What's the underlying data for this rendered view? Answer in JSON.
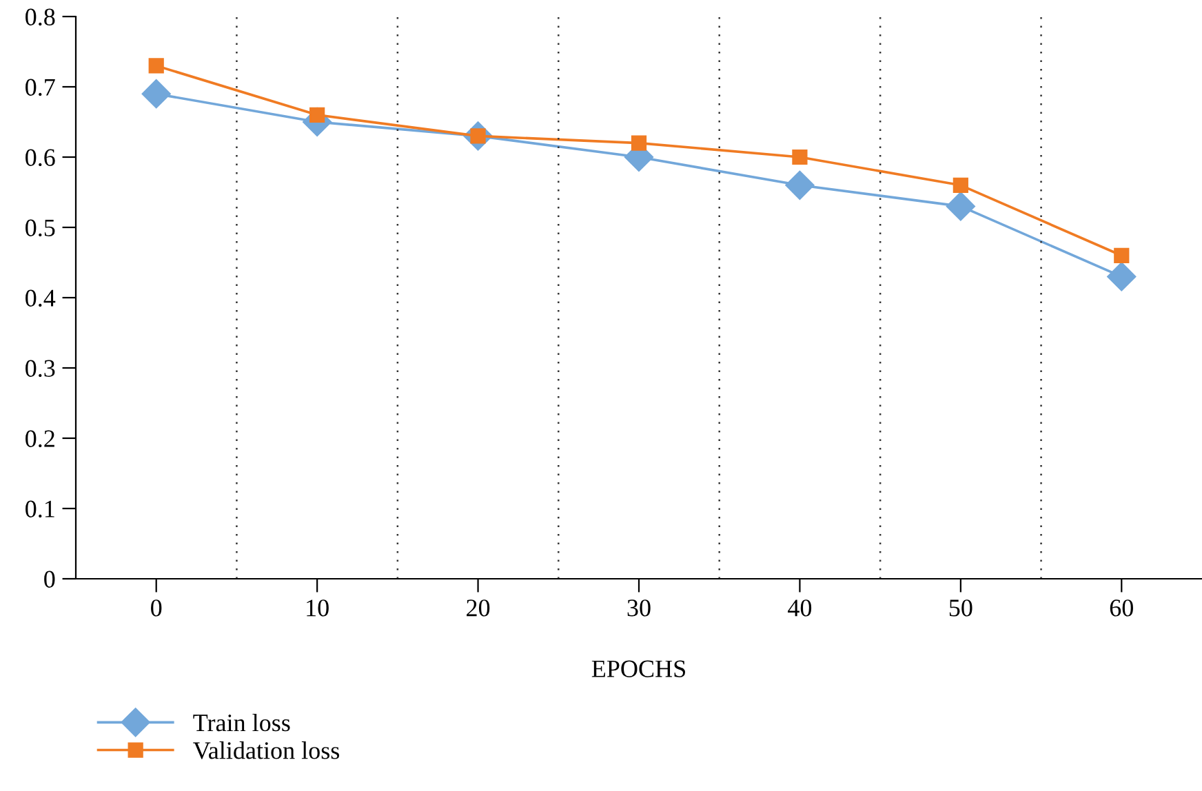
{
  "chart_data": {
    "type": "line",
    "xlabel": "EPOCHS",
    "categories": [
      "0",
      "10",
      "20",
      "30",
      "40",
      "50",
      "60"
    ],
    "series": [
      {
        "name": "Train loss",
        "color": "#72a7da",
        "marker": "diamond",
        "values": [
          0.69,
          0.65,
          0.63,
          0.6,
          0.56,
          0.53,
          0.43
        ]
      },
      {
        "name": "Validation loss",
        "color": "#f07b23",
        "marker": "square",
        "values": [
          0.73,
          0.66,
          0.63,
          0.62,
          0.6,
          0.56,
          0.46
        ]
      }
    ],
    "ylim": [
      0,
      0.8
    ],
    "yticks": [
      0,
      0.1,
      0.2,
      0.3,
      0.4,
      0.5,
      0.6,
      0.7,
      0.8
    ],
    "grid": "x",
    "legend": "bottom left",
    "line_style": "solid"
  }
}
